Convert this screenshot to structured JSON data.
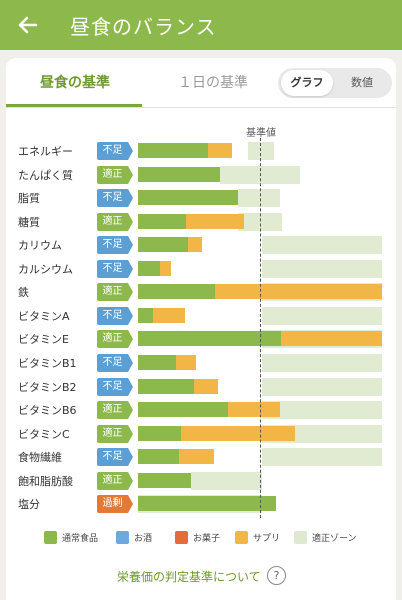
{
  "header": {
    "title": "昼食のバランス",
    "back_icon": "arrow-left-icon",
    "color": "#8cb84c"
  },
  "tabs": [
    {
      "label": "昼食の基準",
      "active": true
    },
    {
      "label": "１日の基準",
      "active": false
    }
  ],
  "view_toggle": {
    "graph_label": "グラフ",
    "value_label": "数値",
    "selected": "グラフ"
  },
  "reference_label": "基準値",
  "status_colors": {
    "不足": "#5c9fd4",
    "適正": "#8cb84c",
    "過剰": "#e07a36"
  },
  "nutrients": [
    {
      "name": "エネルギー",
      "status": "不足",
      "main": 70,
      "supplement": 24,
      "zone_start": 110,
      "zone_end": 136
    },
    {
      "name": "たんぱく質",
      "status": "適正",
      "main": 82,
      "supplement": 0,
      "zone_start": 82,
      "zone_end": 162
    },
    {
      "name": "脂質",
      "status": "不足",
      "main": 100,
      "supplement": 0,
      "zone_start": 100,
      "zone_end": 142
    },
    {
      "name": "糖質",
      "status": "適正",
      "main": 48,
      "supplement": 58,
      "zone_start": 100,
      "zone_end": 144
    },
    {
      "name": "カリウム",
      "status": "不足",
      "main": 50,
      "supplement": 14,
      "zone_start": 124,
      "zone_end": 244
    },
    {
      "name": "カルシウム",
      "status": "不足",
      "main": 22,
      "supplement": 11,
      "zone_start": 124,
      "zone_end": 244
    },
    {
      "name": "鉄",
      "status": "適正",
      "main": 77,
      "supplement": 167,
      "zone_start": 124,
      "zone_end": 244
    },
    {
      "name": "ビタミンA",
      "status": "不足",
      "main": 15,
      "supplement": 32,
      "zone_start": 124,
      "zone_end": 244
    },
    {
      "name": "ビタミンE",
      "status": "適正",
      "main": 143,
      "supplement": 101,
      "zone_start": 124,
      "zone_end": 244
    },
    {
      "name": "ビタミンB1",
      "status": "不足",
      "main": 38,
      "supplement": 20,
      "zone_start": 124,
      "zone_end": 244
    },
    {
      "name": "ビタミンB2",
      "status": "不足",
      "main": 56,
      "supplement": 24,
      "zone_start": 124,
      "zone_end": 244
    },
    {
      "name": "ビタミンB6",
      "status": "適正",
      "main": 90,
      "supplement": 52,
      "zone_start": 124,
      "zone_end": 244
    },
    {
      "name": "ビタミンC",
      "status": "適正",
      "main": 43,
      "supplement": 114,
      "zone_start": 124,
      "zone_end": 244
    },
    {
      "name": "食物繊維",
      "status": "不足",
      "main": 41,
      "supplement": 35,
      "zone_start": 124,
      "zone_end": 244
    },
    {
      "name": "飽和脂肪酸",
      "status": "適正",
      "main": 53,
      "supplement": 0,
      "zone_start": 53,
      "zone_end": 124
    },
    {
      "name": "塩分",
      "status": "過剰",
      "main": 138,
      "supplement": 0,
      "zone_start": 0,
      "zone_end": 124
    }
  ],
  "legend": [
    {
      "label": "通常食品",
      "color": "#8cb84c"
    },
    {
      "label": "お酒",
      "color": "#6fa8dc"
    },
    {
      "label": "お菓子",
      "color": "#e36b3c"
    },
    {
      "label": "サプリ",
      "color": "#f2b646"
    },
    {
      "label": "適正ゾーン",
      "color": "#dfe9cf"
    }
  ],
  "help_link": {
    "label": "栄養価の判定基準について",
    "icon": "question-circle-icon"
  }
}
